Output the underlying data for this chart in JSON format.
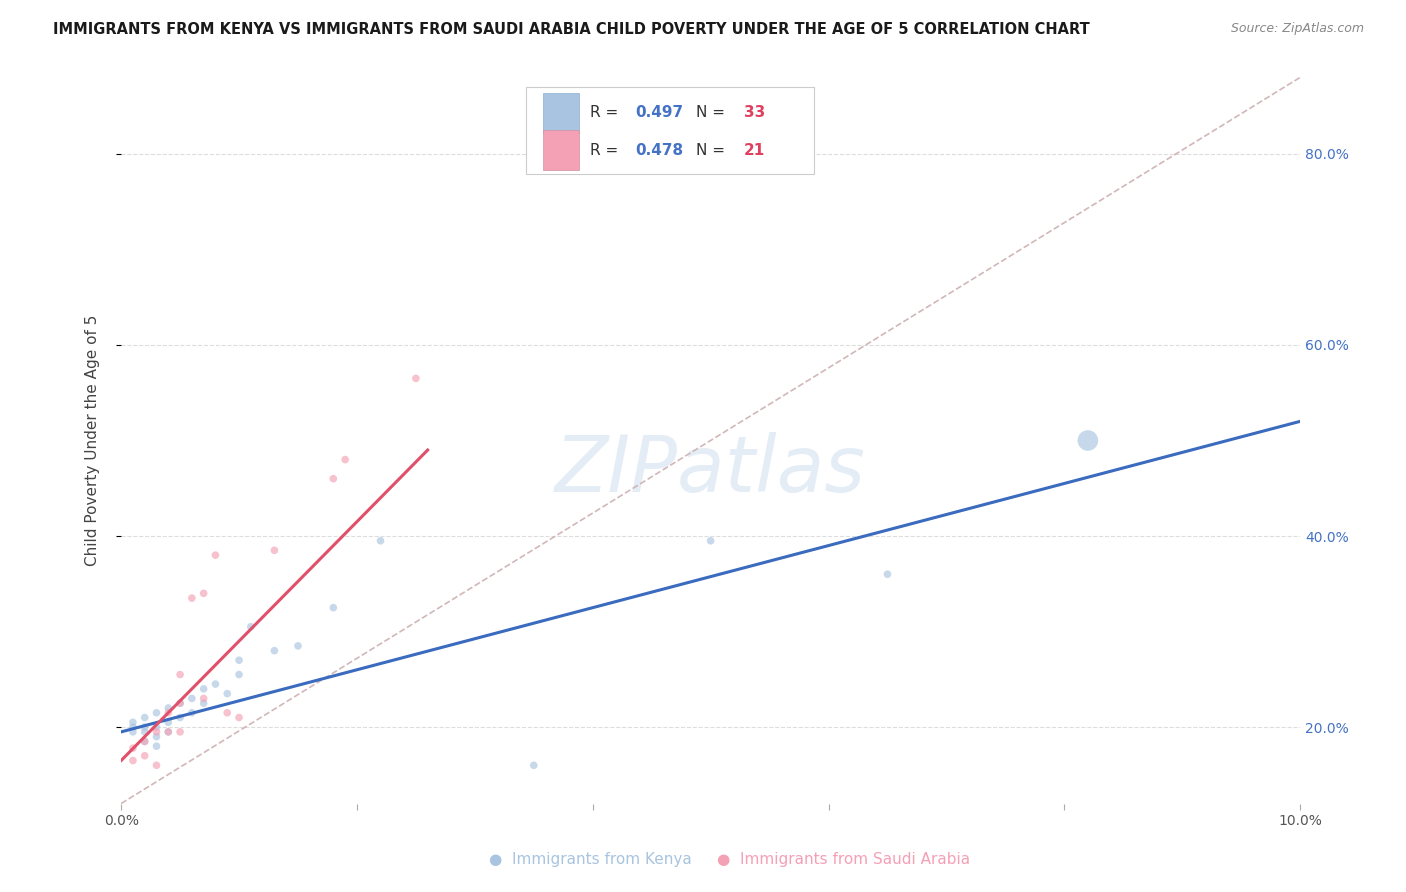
{
  "title": "IMMIGRANTS FROM KENYA VS IMMIGRANTS FROM SAUDI ARABIA CHILD POVERTY UNDER THE AGE OF 5 CORRELATION CHART",
  "source": "Source: ZipAtlas.com",
  "ylabel": "Child Poverty Under the Age of 5",
  "xlim": [
    0.0,
    0.1
  ],
  "ylim": [
    0.12,
    0.88
  ],
  "kenya_R": 0.497,
  "kenya_N": 33,
  "saudi_R": 0.478,
  "saudi_N": 21,
  "kenya_color": "#a8c4e0",
  "saudi_color": "#f4a0b5",
  "kenya_line_color": "#3a6bbf",
  "saudi_line_color": "#e0506a",
  "diag_color": "#ccb0b0",
  "watermark": "ZIPatlas",
  "background_color": "#ffffff",
  "grid_color": "#dddddd",
  "kenya_x": [
    0.001,
    0.001,
    0.001,
    0.002,
    0.002,
    0.002,
    0.002,
    0.003,
    0.003,
    0.003,
    0.003,
    0.004,
    0.004,
    0.004,
    0.005,
    0.005,
    0.006,
    0.006,
    0.007,
    0.007,
    0.008,
    0.009,
    0.01,
    0.01,
    0.011,
    0.013,
    0.015,
    0.018,
    0.022,
    0.035,
    0.05,
    0.065,
    0.082
  ],
  "kenya_y": [
    0.195,
    0.2,
    0.205,
    0.185,
    0.195,
    0.2,
    0.21,
    0.18,
    0.19,
    0.2,
    0.215,
    0.195,
    0.205,
    0.22,
    0.21,
    0.225,
    0.215,
    0.23,
    0.225,
    0.24,
    0.245,
    0.235,
    0.255,
    0.27,
    0.305,
    0.28,
    0.285,
    0.325,
    0.395,
    0.16,
    0.395,
    0.36,
    0.5
  ],
  "kenya_sizes": [
    30,
    30,
    30,
    30,
    30,
    30,
    30,
    30,
    30,
    30,
    30,
    30,
    30,
    30,
    30,
    30,
    30,
    30,
    30,
    30,
    30,
    30,
    30,
    30,
    30,
    30,
    30,
    30,
    30,
    30,
    30,
    30,
    220
  ],
  "saudi_x": [
    0.001,
    0.001,
    0.002,
    0.002,
    0.003,
    0.003,
    0.004,
    0.004,
    0.005,
    0.005,
    0.005,
    0.006,
    0.007,
    0.007,
    0.008,
    0.009,
    0.01,
    0.013,
    0.018,
    0.019,
    0.025
  ],
  "saudi_y": [
    0.178,
    0.165,
    0.17,
    0.185,
    0.16,
    0.195,
    0.195,
    0.215,
    0.195,
    0.225,
    0.255,
    0.335,
    0.23,
    0.34,
    0.38,
    0.215,
    0.21,
    0.385,
    0.46,
    0.48,
    0.565
  ],
  "saudi_sizes": [
    30,
    30,
    30,
    30,
    30,
    30,
    30,
    30,
    30,
    30,
    30,
    30,
    30,
    30,
    30,
    30,
    30,
    30,
    30,
    30,
    30
  ],
  "kenya_line_x": [
    0.0,
    0.1
  ],
  "kenya_line_y": [
    0.195,
    0.52
  ],
  "saudi_line_x": [
    0.0,
    0.026
  ],
  "saudi_line_y": [
    0.165,
    0.49
  ],
  "diag_line_x": [
    0.0,
    0.1
  ],
  "diag_line_y": [
    0.12,
    0.88
  ]
}
